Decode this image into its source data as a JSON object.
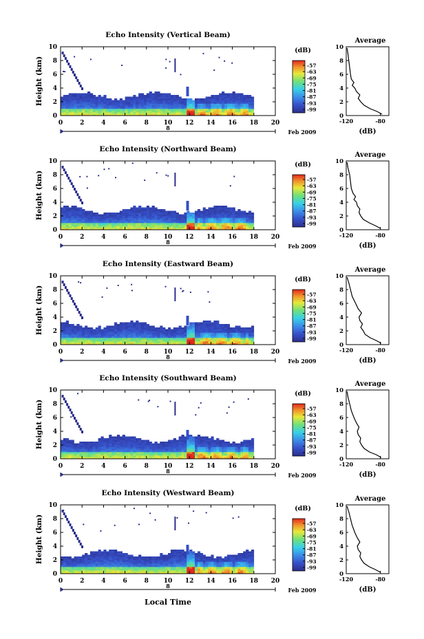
{
  "figure": {
    "date_label": "Feb 2009",
    "xlabel": "Local Time",
    "ylabel": "Height (km)",
    "colorbar_title": "(dB)",
    "profile_title": "Average",
    "profile_xlabel": "(dB)",
    "day_marker": "8"
  },
  "chart_data": [
    {
      "type": "heatmap",
      "title": "Echo Intensity (Vertical Beam)",
      "ylabel": "Height (km)",
      "x_ticks": [
        "0",
        "2",
        "4",
        "6",
        "8",
        "10",
        "12",
        "14",
        "16",
        "18",
        "20"
      ],
      "y_ticks": [
        "0",
        "2",
        "4",
        "6",
        "8",
        "10"
      ],
      "xlim": [
        0,
        20
      ],
      "ylim": [
        0,
        10
      ],
      "colorbar_ticks": [
        "-57",
        "-63",
        "-69",
        "-75",
        "-81",
        "-87",
        "-93",
        "-99"
      ],
      "profile": {
        "title": "Average",
        "xlabel": "(dB)",
        "xticks": [
          "-120",
          "-80"
        ],
        "yticks": [
          "0",
          "2",
          "4",
          "6",
          "8",
          "10"
        ],
        "points": [
          [
            -78,
            0.2
          ],
          [
            -84,
            0.6
          ],
          [
            -92,
            1.0
          ],
          [
            -99,
            1.5
          ],
          [
            -103,
            2.0
          ],
          [
            -106,
            2.5
          ],
          [
            -104,
            3.0
          ],
          [
            -108,
            3.5
          ],
          [
            -110,
            4.0
          ],
          [
            -113,
            4.4
          ],
          [
            -111,
            4.8
          ],
          [
            -114,
            5.3
          ],
          [
            -115,
            6.0
          ],
          [
            -116,
            7.0
          ],
          [
            -117,
            8.0
          ],
          [
            -118,
            9.0
          ],
          [
            -119,
            9.8
          ]
        ]
      }
    },
    {
      "type": "heatmap",
      "title": "Echo Intensity (Northward Beam)",
      "ylabel": "Height (km)",
      "x_ticks": [
        "0",
        "2",
        "4",
        "6",
        "8",
        "10",
        "12",
        "14",
        "16",
        "18",
        "20"
      ],
      "y_ticks": [
        "0",
        "2",
        "4",
        "6",
        "8",
        "10"
      ],
      "xlim": [
        0,
        20
      ],
      "ylim": [
        0,
        10
      ],
      "colorbar_ticks": [
        "-57",
        "-63",
        "-69",
        "-75",
        "-81",
        "-87",
        "-93",
        "-99"
      ],
      "profile": {
        "title": "Average",
        "xlabel": "(dB)",
        "xticks": [
          "-120",
          "-80"
        ],
        "yticks": [
          "0",
          "2",
          "4",
          "6",
          "8",
          "10"
        ],
        "points": [
          [
            -80,
            0.2
          ],
          [
            -86,
            0.6
          ],
          [
            -93,
            1.0
          ],
          [
            -100,
            1.5
          ],
          [
            -103,
            2.0
          ],
          [
            -105,
            2.5
          ],
          [
            -104,
            3.0
          ],
          [
            -107,
            3.5
          ],
          [
            -108,
            4.0
          ],
          [
            -111,
            4.4
          ],
          [
            -109,
            4.8
          ],
          [
            -112,
            5.3
          ],
          [
            -114,
            6.0
          ],
          [
            -115,
            7.0
          ],
          [
            -116,
            8.0
          ],
          [
            -118,
            9.0
          ],
          [
            -119,
            9.8
          ]
        ]
      }
    },
    {
      "type": "heatmap",
      "title": "Echo Intensity (Eastward Beam)",
      "ylabel": "Height (km)",
      "x_ticks": [
        "0",
        "2",
        "4",
        "6",
        "8",
        "10",
        "12",
        "14",
        "16",
        "18",
        "20"
      ],
      "y_ticks": [
        "0",
        "2",
        "4",
        "6",
        "8",
        "10"
      ],
      "xlim": [
        0,
        20
      ],
      "ylim": [
        0,
        10
      ],
      "colorbar_ticks": [
        "-57",
        "-63",
        "-69",
        "-75",
        "-81",
        "-87",
        "-93",
        "-99"
      ],
      "profile": {
        "title": "Average",
        "xlabel": "(dB)",
        "xticks": [
          "-120",
          "-80"
        ],
        "yticks": [
          "0",
          "2",
          "4",
          "6",
          "8",
          "10"
        ],
        "points": [
          [
            -79,
            0.2
          ],
          [
            -85,
            0.6
          ],
          [
            -92,
            1.0
          ],
          [
            -98,
            1.5
          ],
          [
            -100,
            2.0
          ],
          [
            -103,
            2.5
          ],
          [
            -101,
            3.0
          ],
          [
            -104,
            3.5
          ],
          [
            -105,
            4.0
          ],
          [
            -102,
            4.6
          ],
          [
            -106,
            5.2
          ],
          [
            -109,
            6.0
          ],
          [
            -113,
            7.0
          ],
          [
            -115,
            8.0
          ],
          [
            -117,
            9.0
          ],
          [
            -119,
            9.8
          ]
        ]
      }
    },
    {
      "type": "heatmap",
      "title": "Echo Intensity (Southward Beam)",
      "ylabel": "Height (km)",
      "x_ticks": [
        "0",
        "2",
        "4",
        "6",
        "8",
        "10",
        "12",
        "14",
        "16",
        "18",
        "20"
      ],
      "y_ticks": [
        "0",
        "2",
        "4",
        "6",
        "8",
        "10"
      ],
      "xlim": [
        0,
        20
      ],
      "ylim": [
        0,
        10
      ],
      "colorbar_ticks": [
        "-57",
        "-63",
        "-69",
        "-75",
        "-81",
        "-87",
        "-93",
        "-99"
      ],
      "profile": {
        "title": "Average",
        "xlabel": "(dB)",
        "xticks": [
          "-120",
          "-80"
        ],
        "yticks": [
          "0",
          "2",
          "4",
          "6",
          "8",
          "10"
        ],
        "points": [
          [
            -79,
            0.2
          ],
          [
            -85,
            0.6
          ],
          [
            -93,
            1.0
          ],
          [
            -99,
            1.5
          ],
          [
            -102,
            2.0
          ],
          [
            -104,
            2.5
          ],
          [
            -103,
            3.0
          ],
          [
            -106,
            3.5
          ],
          [
            -107,
            4.0
          ],
          [
            -105,
            4.6
          ],
          [
            -108,
            5.2
          ],
          [
            -111,
            6.0
          ],
          [
            -114,
            7.0
          ],
          [
            -116,
            8.0
          ],
          [
            -118,
            9.0
          ],
          [
            -119,
            9.8
          ]
        ]
      }
    },
    {
      "type": "heatmap",
      "title": "Echo Intensity (Westward Beam)",
      "ylabel": "Height (km)",
      "xlabel": "Local Time",
      "x_ticks": [
        "0",
        "2",
        "4",
        "6",
        "8",
        "10",
        "12",
        "14",
        "16",
        "18",
        "20"
      ],
      "y_ticks": [
        "0",
        "2",
        "4",
        "6",
        "8",
        "10"
      ],
      "xlim": [
        0,
        20
      ],
      "ylim": [
        0,
        10
      ],
      "colorbar_ticks": [
        "-57",
        "-63",
        "-69",
        "-75",
        "-81",
        "-87",
        "-93",
        "-99"
      ],
      "profile": {
        "title": "Average",
        "xlabel": "(dB)",
        "xticks": [
          "-120",
          "-80"
        ],
        "yticks": [
          "0",
          "2",
          "4",
          "6",
          "8",
          "10"
        ],
        "points": [
          [
            -80,
            0.2
          ],
          [
            -86,
            0.6
          ],
          [
            -93,
            1.0
          ],
          [
            -99,
            1.5
          ],
          [
            -102,
            2.0
          ],
          [
            -104,
            2.5
          ],
          [
            -103,
            3.0
          ],
          [
            -106,
            3.5
          ],
          [
            -107,
            4.0
          ],
          [
            -104,
            4.6
          ],
          [
            -107,
            5.2
          ],
          [
            -110,
            6.0
          ],
          [
            -113,
            7.0
          ],
          [
            -115,
            8.0
          ],
          [
            -117,
            9.0
          ],
          [
            -119,
            9.8
          ]
        ]
      }
    }
  ]
}
